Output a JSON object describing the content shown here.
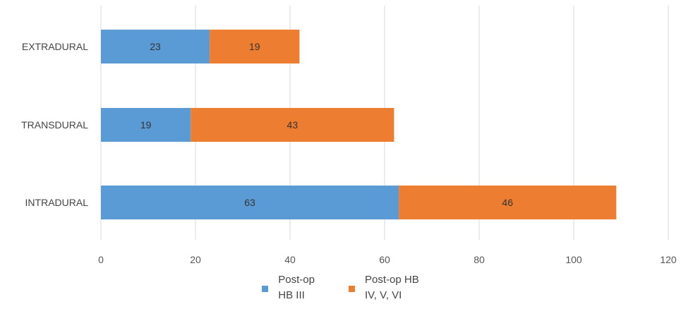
{
  "chart_data": {
    "type": "bar",
    "orientation": "horizontal",
    "stacked": true,
    "categories": [
      "EXTRADURAL",
      "TRANSDURAL",
      "INTRADURAL"
    ],
    "series": [
      {
        "name": "Post-op\nHB III",
        "values": [
          23,
          19,
          63
        ],
        "color": "#5b9bd5"
      },
      {
        "name": "Post-op HB\nIV, V, VI",
        "values": [
          19,
          43,
          46
        ],
        "color": "#ed7d31"
      }
    ],
    "xlim": [
      0,
      120
    ],
    "xticks": [
      "0",
      "20",
      "40",
      "60",
      "80",
      "100",
      "120"
    ],
    "grid": true,
    "legend_position": "bottom"
  }
}
